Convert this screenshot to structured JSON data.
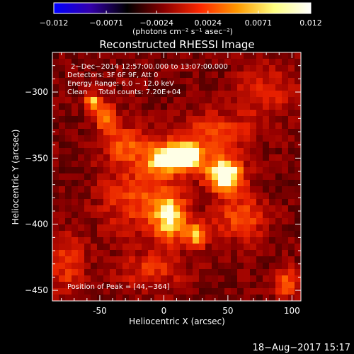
{
  "chart_data": {
    "type": "heatmap",
    "title": "Reconstructed RHESSI Image",
    "xlabel": "Heliocentric X (arcsec)",
    "ylabel": "Heliocentric Y (arcsec)",
    "xlim": [
      -87,
      107
    ],
    "ylim": [
      -458,
      -270
    ],
    "x_ticks": [
      -50,
      0,
      50,
      100
    ],
    "y_ticks": [
      -300,
      -350,
      -400,
      -450
    ],
    "x_tick_labels": [
      "-50",
      "0",
      "50",
      "100"
    ],
    "y_tick_labels": [
      "−300",
      "−350",
      "−400",
      "−450"
    ],
    "colorbar": {
      "range": [
        -0.012,
        0.012
      ],
      "ticks": [
        -0.012,
        -0.0071,
        -0.0024,
        0.0024,
        0.0071,
        0.012
      ],
      "tick_labels": [
        "−0.012",
        "−0.0071",
        "−0.0024",
        "0.0024",
        "0.0071",
        "0.012"
      ],
      "unit_label": "(photons cm⁻² s⁻¹ asec⁻²)",
      "colormap": [
        "#0000ff",
        "#3300aa",
        "#000000",
        "#8a0000",
        "#ff2800",
        "#ff9a00",
        "#ffff80",
        "#ffffff"
      ]
    },
    "sources": [
      {
        "x": 2,
        "y": -350,
        "peak": 0.0105,
        "sx": 11,
        "sy": 8
      },
      {
        "x": 20,
        "y": -348,
        "peak": 0.0095,
        "sx": 9,
        "sy": 7
      },
      {
        "x": 47,
        "y": -362,
        "peak": 0.012,
        "sx": 10,
        "sy": 9
      },
      {
        "x": 5,
        "y": -395,
        "peak": 0.0082,
        "sx": 9,
        "sy": 13
      },
      {
        "x": 26,
        "y": -408,
        "peak": 0.0078,
        "sx": 6,
        "sy": 6
      },
      {
        "x": -55,
        "y": -308,
        "peak": 0.0072,
        "sx": 5,
        "sy": 5
      },
      {
        "x": -45,
        "y": -320,
        "peak": 0.0055,
        "sx": 6,
        "sy": 8
      },
      {
        "x": -30,
        "y": -340,
        "peak": 0.005,
        "sx": 12,
        "sy": 10
      },
      {
        "x": 40,
        "y": -330,
        "peak": 0.0042,
        "sx": 20,
        "sy": 10
      },
      {
        "x": -20,
        "y": -380,
        "peak": 0.0045,
        "sx": 20,
        "sy": 18
      },
      {
        "x": 60,
        "y": -395,
        "peak": 0.0048,
        "sx": 14,
        "sy": 12
      },
      {
        "x": 95,
        "y": -445,
        "peak": 0.0058,
        "sx": 6,
        "sy": 8
      },
      {
        "x": -75,
        "y": -430,
        "peak": 0.004,
        "sx": 10,
        "sy": 16
      },
      {
        "x": -10,
        "y": -435,
        "peak": 0.0035,
        "sx": 18,
        "sy": 10
      },
      {
        "x": 80,
        "y": -300,
        "peak": 0.0032,
        "sx": 16,
        "sy": 14
      }
    ],
    "background_level": 0.0028,
    "peak_position": [
      44,
      -364
    ],
    "annotations": [
      "2−Dec−2014 12:57:00.000 to 13:07:00.000",
      "Detectors: 3F 6F 9F, Att 0",
      "Energy Range: 6.0 − 12.0 keV",
      "Clean     Total counts: 7.20E+04"
    ],
    "peak_label": "Position of Peak = [44,−364]",
    "timestamp": "18−Aug−2017 15:17"
  }
}
